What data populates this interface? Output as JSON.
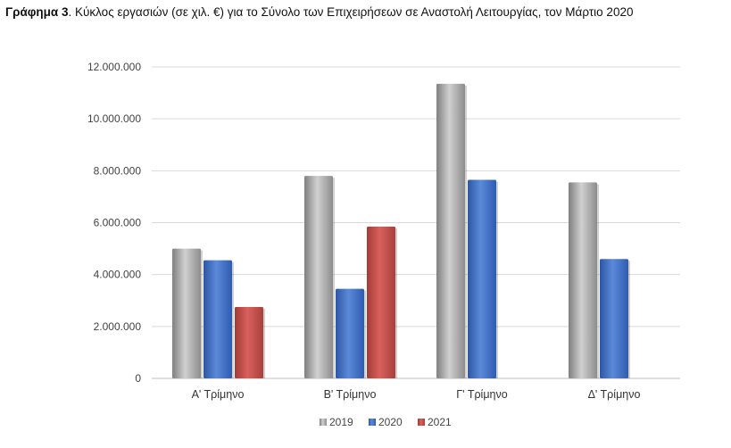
{
  "caption": {
    "label": "Γράφημα 3",
    "text": ".  Κύκλος εργασιών (σε χιλ. €) για το Σύνολο των Επιχειρήσεων σε Αναστολή Λειτουργίας, τον Μάρτιο 2020"
  },
  "chart_data": {
    "type": "bar",
    "categories": [
      "Α' Τρίμηνο",
      "Β' Τρίμηνο",
      "Γ' Τρίμηνο",
      "Δ' Τρίμηνο"
    ],
    "series": [
      {
        "name": "2019",
        "color": "#a6a6a6",
        "values": [
          5000000,
          7800000,
          11350000,
          7550000
        ]
      },
      {
        "name": "2020",
        "color": "#4472c4",
        "values": [
          4550000,
          3450000,
          7650000,
          4600000
        ]
      },
      {
        "name": "2021",
        "color": "#c0504d",
        "values": [
          2750000,
          5850000,
          null,
          null
        ]
      }
    ],
    "ylim": [
      0,
      12000000
    ],
    "yticks": [
      0,
      2000000,
      4000000,
      6000000,
      8000000,
      10000000,
      12000000
    ],
    "ytick_labels": [
      "0",
      "2.000.000",
      "4.000.000",
      "6.000.000",
      "8.000.000",
      "10.000.000",
      "12.000.000"
    ],
    "grid": true,
    "legend_position": "bottom"
  }
}
